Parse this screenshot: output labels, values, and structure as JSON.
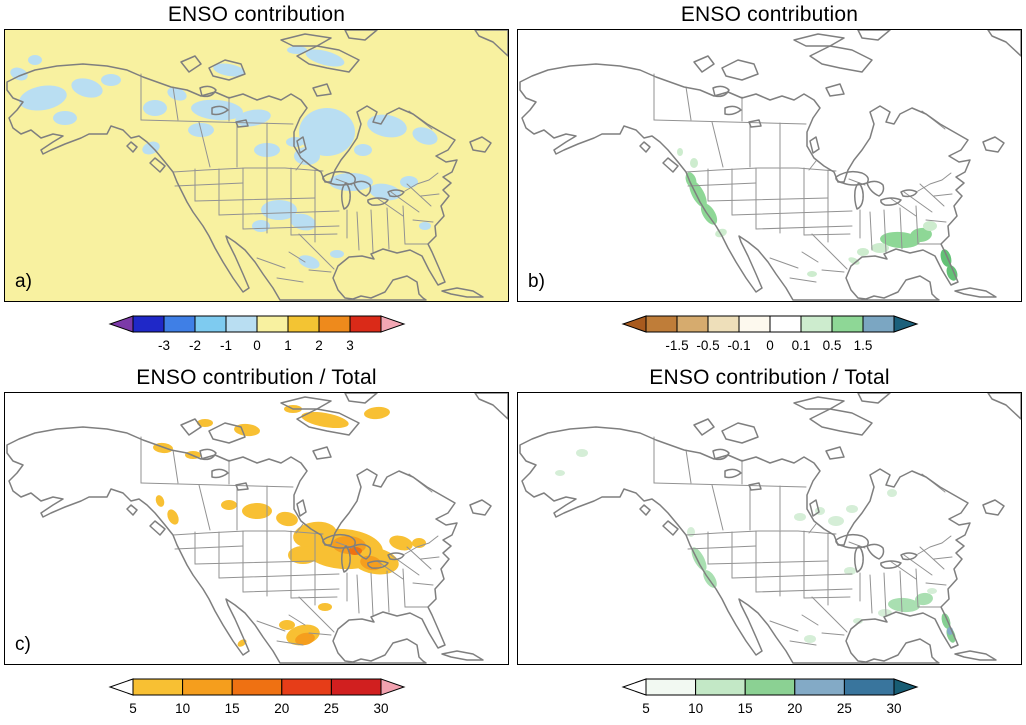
{
  "figure": {
    "background_color": "#ffffff",
    "coast_color": "#7f7f7f",
    "border_color": "#929292",
    "panels": [
      {
        "id": "a",
        "label": "a)",
        "title": "ENSO contribution",
        "map_background": "#f8f1a0",
        "patches": [
          {
            "region": "a-bering",
            "color": "#b9def2"
          },
          {
            "region": "a-alaska",
            "color": "#b9def2"
          },
          {
            "region": "a-yukon",
            "color": "#b9def2"
          },
          {
            "region": "a-nwt",
            "color": "#b9def2"
          },
          {
            "region": "a-arctic-islands",
            "color": "#b9def2"
          },
          {
            "region": "a-hudson-bay",
            "color": "#b9def2"
          },
          {
            "region": "a-quebec",
            "color": "#b9def2"
          },
          {
            "region": "a-great-lakes",
            "color": "#b9def2"
          },
          {
            "region": "a-prairies",
            "color": "#b9def2"
          },
          {
            "region": "a-central-plains",
            "color": "#b9def2"
          },
          {
            "region": "a-north-mexico",
            "color": "#b9def2"
          },
          {
            "region": "a-bc-coast",
            "color": "#b9def2"
          },
          {
            "region": "a-southeast",
            "color": "#b9def2"
          }
        ],
        "colorbar": {
          "ticks": [
            "-3",
            "-2",
            "-1",
            "0",
            "1",
            "2",
            "3"
          ],
          "tick_mode": "inner",
          "left_arrow": "#7c3aa8",
          "right_arrow": "#f3a7b4",
          "segments": [
            "#1f28c8",
            "#3f7fe6",
            "#7ecbf0",
            "#b9def2",
            "#f8f1a0",
            "#f3c433",
            "#ee8a1c",
            "#da2a18"
          ]
        }
      },
      {
        "id": "b",
        "label": "b)",
        "title": "ENSO contribution",
        "map_background": "#ffffff",
        "patches": [
          {
            "region": "b-california-coast",
            "color": "#8ed796"
          },
          {
            "region": "b-socal",
            "color": "#cdecce"
          },
          {
            "region": "b-pacific-northwest",
            "color": "#cdecce"
          },
          {
            "region": "b-gulf-southeast",
            "color": "#8ed796"
          },
          {
            "region": "b-gulf-fringe",
            "color": "#cdecce"
          },
          {
            "region": "b-florida",
            "color": "#63c276"
          },
          {
            "region": "b-georgia",
            "color": "#cdecce"
          },
          {
            "region": "b-texas-coast",
            "color": "#cdecce"
          },
          {
            "region": "b-mexico-speck",
            "color": "#cdecce"
          }
        ],
        "colorbar": {
          "ticks": [
            "-1.5",
            "-0.5",
            "-0.1",
            "0",
            "0.1",
            "0.5",
            "1.5"
          ],
          "tick_mode": "inner",
          "left_arrow": "#a85a1e",
          "right_arrow": "#1b607b",
          "segments": [
            "#bf7d39",
            "#d6ab6e",
            "#eedfba",
            "#fdf9ee",
            "#ffffff",
            "#cdecce",
            "#8ed796",
            "#7ba6c2"
          ]
        }
      },
      {
        "id": "c",
        "label": "c)",
        "title": "ENSO contribution / Total",
        "map_background": "#ffffff",
        "patches": [
          {
            "region": "c-midwest",
            "color": "#f8c033"
          },
          {
            "region": "c-midwest-core",
            "color": "#f59e1d"
          },
          {
            "region": "c-midwest-dark",
            "color": "#ef7112"
          },
          {
            "region": "c-prairie-canada",
            "color": "#f8c033"
          },
          {
            "region": "c-arctic-islands",
            "color": "#f8c033"
          },
          {
            "region": "c-nwt-coast",
            "color": "#f8c033"
          },
          {
            "region": "c-pnw-coast",
            "color": "#f8c033"
          },
          {
            "region": "c-mexico-gold",
            "color": "#f8c033"
          },
          {
            "region": "c-mexico-core",
            "color": "#f59e1d"
          },
          {
            "region": "c-ontario",
            "color": "#f8c033"
          },
          {
            "region": "c-baja-tip",
            "color": "#f8c033"
          },
          {
            "region": "c-texas",
            "color": "#f8c033"
          }
        ],
        "colorbar": {
          "ticks": [
            "5",
            "10",
            "15",
            "20",
            "25",
            "30"
          ],
          "tick_mode": "edges",
          "left_arrow": "#ffffff",
          "right_arrow": "#f2a2b0",
          "segments": [
            "#f8c033",
            "#f59e1d",
            "#ef7112",
            "#e63d18",
            "#d11f1f"
          ]
        }
      },
      {
        "id": "d",
        "label": "",
        "title": "ENSO contribution / Total",
        "map_background": "#ffffff",
        "patches": [
          {
            "region": "d-california-coast",
            "color": "#a9dfb1"
          },
          {
            "region": "d-pnw",
            "color": "#d5eed7"
          },
          {
            "region": "d-southeast",
            "color": "#a9dfb1"
          },
          {
            "region": "d-southeast-fringe",
            "color": "#d5eed7"
          },
          {
            "region": "d-florida",
            "color": "#85cf92"
          },
          {
            "region": "d-florida-blue",
            "color": "#83aac6"
          },
          {
            "region": "d-hudson-south",
            "color": "#d5eed7"
          },
          {
            "region": "d-manitoba",
            "color": "#d5eed7"
          },
          {
            "region": "d-alaska",
            "color": "#d5eed7"
          },
          {
            "region": "d-quebec",
            "color": "#d5eed7"
          },
          {
            "region": "d-mexico",
            "color": "#d5eed7"
          },
          {
            "region": "d-texas",
            "color": "#d5eed7"
          },
          {
            "region": "d-midwest",
            "color": "#d5eed7"
          },
          {
            "region": "d-georgia",
            "color": "#d5eed7"
          }
        ],
        "colorbar": {
          "ticks": [
            "5",
            "10",
            "15",
            "20",
            "25",
            "30"
          ],
          "tick_mode": "edges",
          "left_arrow": "#ffffff",
          "right_arrow": "#175d74",
          "segments": [
            "#f2f9f2",
            "#c3e8c6",
            "#8bd193",
            "#83aac6",
            "#39759d"
          ]
        }
      }
    ]
  }
}
